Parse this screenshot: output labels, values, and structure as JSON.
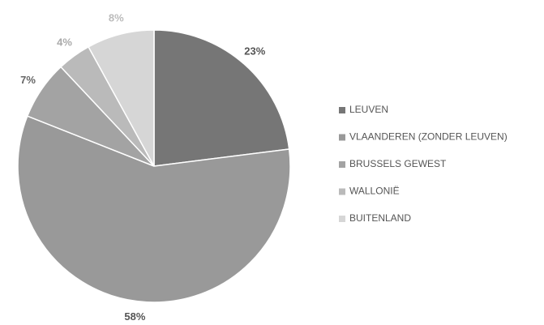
{
  "chart_data": {
    "type": "pie",
    "categories": [
      "LEUVEN",
      "VLAANDEREN (ZONDER LEUVEN)",
      "BRUSSELS GEWEST",
      "WALLONIË",
      "BUITENLAND"
    ],
    "values": [
      23,
      58,
      7,
      4,
      8
    ],
    "value_labels": [
      "23%",
      "58%",
      "7%",
      "4%",
      "8%"
    ],
    "colors": [
      "#767676",
      "#999999",
      "#a3a3a3",
      "#bababa",
      "#d6d6d6"
    ],
    "legend": "right"
  }
}
